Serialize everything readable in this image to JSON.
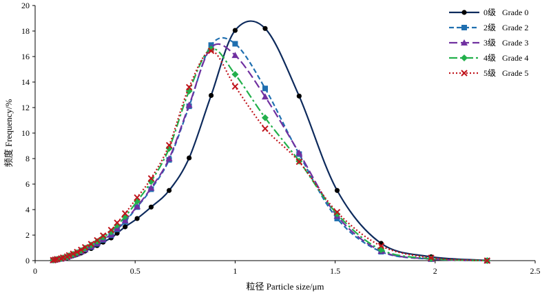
{
  "chart_data": {
    "type": "line",
    "title": "",
    "xlabel": "粒径  Particle size/μm",
    "ylabel": "频度  Frequency/%",
    "xlim": [
      0,
      2.5
    ],
    "ylim": [
      0,
      20
    ],
    "xticks": [
      0,
      0.5,
      1,
      1.5,
      2,
      2.5
    ],
    "xtick_labels": [
      "0",
      "0.5",
      "1",
      "1.5",
      "2",
      "2.5"
    ],
    "yticks": [
      0,
      2,
      4,
      6,
      8,
      10,
      12,
      14,
      16,
      18,
      20
    ],
    "ytick_labels": [
      "0",
      "2",
      "4",
      "6",
      "8",
      "10",
      "12",
      "14",
      "16",
      "18",
      "20"
    ],
    "grid": false,
    "legend_position": "top-right",
    "series": [
      {
        "name": "0级   Grade 0",
        "color": "#0d2a5c",
        "line_style": "solid",
        "marker": "circle",
        "points": [
          [
            0.09,
            0.03
          ],
          [
            0.1,
            0.05
          ],
          [
            0.11,
            0.08
          ],
          [
            0.13,
            0.12
          ],
          [
            0.14,
            0.16
          ],
          [
            0.16,
            0.22
          ],
          [
            0.17,
            0.3
          ],
          [
            0.19,
            0.38
          ],
          [
            0.21,
            0.48
          ],
          [
            0.23,
            0.6
          ],
          [
            0.25,
            0.75
          ],
          [
            0.28,
            0.95
          ],
          [
            0.31,
            1.18
          ],
          [
            0.34,
            1.45
          ],
          [
            0.38,
            1.78
          ],
          [
            0.41,
            2.15
          ],
          [
            0.45,
            2.65
          ],
          [
            0.51,
            3.3
          ],
          [
            0.58,
            4.2
          ],
          [
            0.67,
            5.5
          ],
          [
            0.77,
            8.05
          ],
          [
            0.88,
            12.95
          ],
          [
            1.0,
            18.05
          ],
          [
            1.15,
            18.2
          ],
          [
            1.32,
            12.9
          ],
          [
            1.51,
            5.5
          ],
          [
            1.73,
            1.35
          ],
          [
            1.98,
            0.3
          ],
          [
            2.26,
            0.02
          ]
        ]
      },
      {
        "name": "2级   Grade 2",
        "color": "#1f6fb0",
        "line_style": "dashed",
        "marker": "square",
        "points": [
          [
            0.09,
            0.03
          ],
          [
            0.1,
            0.06
          ],
          [
            0.11,
            0.1
          ],
          [
            0.13,
            0.14
          ],
          [
            0.14,
            0.2
          ],
          [
            0.16,
            0.27
          ],
          [
            0.17,
            0.35
          ],
          [
            0.19,
            0.45
          ],
          [
            0.21,
            0.56
          ],
          [
            0.23,
            0.7
          ],
          [
            0.25,
            0.86
          ],
          [
            0.28,
            1.07
          ],
          [
            0.31,
            1.32
          ],
          [
            0.34,
            1.62
          ],
          [
            0.38,
            1.98
          ],
          [
            0.41,
            2.45
          ],
          [
            0.45,
            3.05
          ],
          [
            0.51,
            4.2
          ],
          [
            0.58,
            5.6
          ],
          [
            0.67,
            7.9
          ],
          [
            0.77,
            12.1
          ],
          [
            0.88,
            16.9
          ],
          [
            1.0,
            17.0
          ],
          [
            1.15,
            13.5
          ],
          [
            1.32,
            8.35
          ],
          [
            1.51,
            3.3
          ],
          [
            1.73,
            0.7
          ],
          [
            1.98,
            0.12
          ],
          [
            2.26,
            0.0
          ]
        ]
      },
      {
        "name": "3级   Grade 3",
        "color": "#7030a0",
        "line_style": "long-dash",
        "marker": "triangle",
        "points": [
          [
            0.09,
            0.03
          ],
          [
            0.1,
            0.06
          ],
          [
            0.11,
            0.1
          ],
          [
            0.13,
            0.14
          ],
          [
            0.14,
            0.2
          ],
          [
            0.16,
            0.27
          ],
          [
            0.17,
            0.35
          ],
          [
            0.19,
            0.45
          ],
          [
            0.21,
            0.57
          ],
          [
            0.23,
            0.71
          ],
          [
            0.25,
            0.88
          ],
          [
            0.28,
            1.1
          ],
          [
            0.31,
            1.36
          ],
          [
            0.34,
            1.67
          ],
          [
            0.38,
            2.05
          ],
          [
            0.41,
            2.52
          ],
          [
            0.45,
            3.15
          ],
          [
            0.51,
            4.25
          ],
          [
            0.58,
            5.7
          ],
          [
            0.67,
            8.0
          ],
          [
            0.77,
            12.2
          ],
          [
            0.88,
            16.7
          ],
          [
            1.0,
            16.1
          ],
          [
            1.15,
            12.85
          ],
          [
            1.32,
            8.45
          ],
          [
            1.51,
            3.5
          ],
          [
            1.73,
            0.75
          ],
          [
            1.98,
            0.13
          ],
          [
            2.26,
            0.0
          ]
        ]
      },
      {
        "name": "4级   Grade 4",
        "color": "#22b04b",
        "line_style": "dash-dot",
        "marker": "diamond",
        "points": [
          [
            0.09,
            0.04
          ],
          [
            0.1,
            0.07
          ],
          [
            0.11,
            0.11
          ],
          [
            0.13,
            0.16
          ],
          [
            0.14,
            0.22
          ],
          [
            0.16,
            0.3
          ],
          [
            0.17,
            0.39
          ],
          [
            0.19,
            0.5
          ],
          [
            0.21,
            0.63
          ],
          [
            0.23,
            0.79
          ],
          [
            0.25,
            0.98
          ],
          [
            0.28,
            1.22
          ],
          [
            0.31,
            1.5
          ],
          [
            0.34,
            1.84
          ],
          [
            0.38,
            2.25
          ],
          [
            0.41,
            2.78
          ],
          [
            0.45,
            3.45
          ],
          [
            0.51,
            4.65
          ],
          [
            0.58,
            6.2
          ],
          [
            0.67,
            8.8
          ],
          [
            0.77,
            13.3
          ],
          [
            0.88,
            16.6
          ],
          [
            1.0,
            14.6
          ],
          [
            1.15,
            11.2
          ],
          [
            1.32,
            7.8
          ],
          [
            1.51,
            3.65
          ],
          [
            1.73,
            0.85
          ],
          [
            1.98,
            0.15
          ],
          [
            2.26,
            0.0
          ]
        ]
      },
      {
        "name": "5级   Grade 5",
        "color": "#c0141c",
        "line_style": "dotted",
        "marker": "cross",
        "points": [
          [
            0.09,
            0.04
          ],
          [
            0.1,
            0.08
          ],
          [
            0.11,
            0.12
          ],
          [
            0.13,
            0.17
          ],
          [
            0.14,
            0.24
          ],
          [
            0.16,
            0.32
          ],
          [
            0.17,
            0.42
          ],
          [
            0.19,
            0.54
          ],
          [
            0.21,
            0.68
          ],
          [
            0.23,
            0.85
          ],
          [
            0.25,
            1.05
          ],
          [
            0.28,
            1.3
          ],
          [
            0.31,
            1.6
          ],
          [
            0.34,
            1.96
          ],
          [
            0.38,
            2.4
          ],
          [
            0.41,
            2.97
          ],
          [
            0.45,
            3.7
          ],
          [
            0.51,
            4.95
          ],
          [
            0.58,
            6.45
          ],
          [
            0.67,
            9.05
          ],
          [
            0.77,
            13.6
          ],
          [
            0.88,
            16.45
          ],
          [
            1.0,
            13.65
          ],
          [
            1.15,
            10.35
          ],
          [
            1.32,
            7.75
          ],
          [
            1.51,
            3.8
          ],
          [
            1.73,
            1.15
          ],
          [
            1.98,
            0.22
          ],
          [
            2.26,
            0.0
          ]
        ]
      }
    ]
  }
}
